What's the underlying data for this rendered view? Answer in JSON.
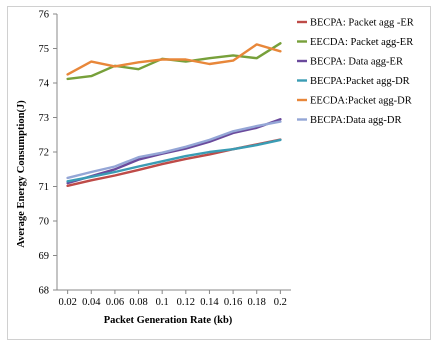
{
  "chart_data": {
    "type": "line",
    "xlabel": "Packet Generation  Rate (kb)",
    "ylabel": "Average  Energy  Consumption(J)",
    "x": [
      "0.02",
      "0.04",
      "0.06",
      "0.08",
      "0.1",
      "0.12",
      "0.14",
      "0.16",
      "0.18",
      "0.2"
    ],
    "ylim": [
      68,
      76
    ],
    "yticks": [
      "68",
      "69",
      "70",
      "71",
      "72",
      "73",
      "74",
      "75",
      "76"
    ],
    "grid": false,
    "legend_position": "right",
    "series": [
      {
        "name": "BECPA: Packet agg -ER",
        "color": "#be4b48",
        "values": [
          71.02,
          71.18,
          71.32,
          71.48,
          71.65,
          71.8,
          71.93,
          72.08,
          72.22,
          72.36
        ]
      },
      {
        "name": "EECDA: Packet agg-ER",
        "color": "#77a03a",
        "values": [
          74.12,
          74.2,
          74.5,
          74.4,
          74.7,
          74.62,
          74.72,
          74.8,
          74.72,
          75.15
        ]
      },
      {
        "name": "BECPA: Data agg-ER",
        "color": "#6a4a9c",
        "values": [
          71.1,
          71.3,
          71.5,
          71.78,
          71.95,
          72.1,
          72.3,
          72.55,
          72.7,
          72.95
        ]
      },
      {
        "name": "BECPA:Packet agg-DR",
        "color": "#3a9cb4",
        "values": [
          71.15,
          71.28,
          71.42,
          71.58,
          71.73,
          71.88,
          72.0,
          72.08,
          72.2,
          72.35
        ]
      },
      {
        "name": "EECDA:Packet agg-DR",
        "color": "#e8873a",
        "values": [
          74.25,
          74.62,
          74.48,
          74.6,
          74.68,
          74.68,
          74.55,
          74.65,
          75.12,
          74.92
        ]
      },
      {
        "name": "BECPA:Data agg-DR",
        "color": "#94a6d6",
        "values": [
          71.25,
          71.42,
          71.58,
          71.85,
          71.98,
          72.15,
          72.35,
          72.6,
          72.75,
          72.88
        ]
      }
    ]
  }
}
